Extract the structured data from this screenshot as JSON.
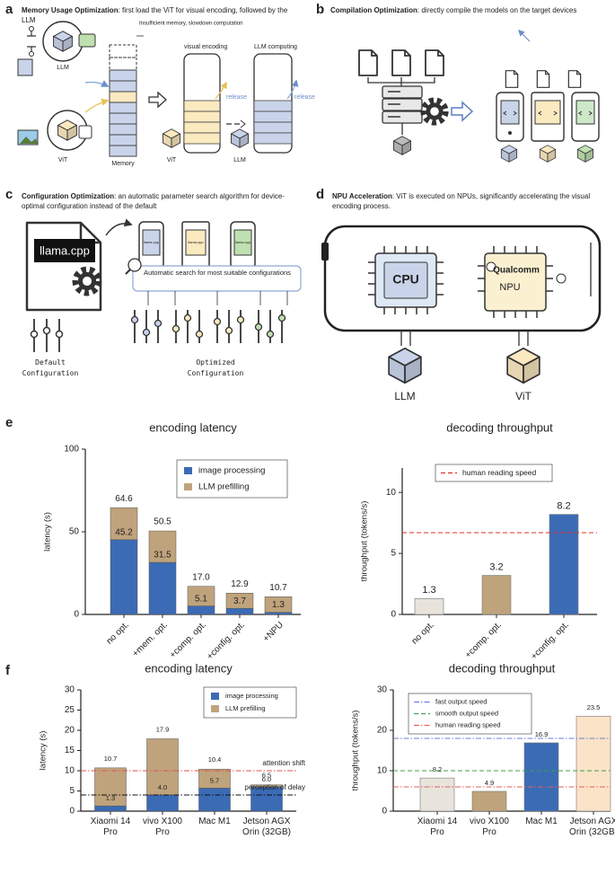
{
  "panels": {
    "a": {
      "label": "a",
      "title_bold": "Memory Usage Optimization",
      "title_rest": ": first load the ViT for visual encoding, followed by the LLM",
      "note": "Insufficient memory, slowdown computation",
      "stage1": "visual encoding",
      "stage2": "LLM computing",
      "release": [
        "release",
        "release"
      ],
      "llm": "LLM",
      "vit": "ViT",
      "memory": "Memory",
      "vit_small": "ViT",
      "llm_small": "LLM"
    },
    "b": {
      "label": "b",
      "title_bold": "Compilation Optimization",
      "title_rest": ": directly compile the models on the target devices"
    },
    "c": {
      "label": "c",
      "title_bold": "Configuration Optimization",
      "title_rest": ": an automatic parameter search algorithm for device-optimal configuration instead of the default",
      "tool": "llama.cpp",
      "phone_labels": [
        "llama.cpp",
        "llama.cpp",
        "llama.cpp"
      ],
      "search": "Automatic search for most suitable configurations",
      "default": "Default Configuration",
      "optimized": "Optimized Configuration"
    },
    "d": {
      "label": "d",
      "title_bold": "NPU Acceleration",
      "title_rest": ": ViT is executed on NPUs, significantly accelerating the visual encoding process.",
      "cpu": "CPU",
      "npu_brand": "Qualcomm",
      "npu": "NPU",
      "llm": "LLM",
      "vit": "ViT"
    }
  },
  "figure_labels": {
    "e": "e",
    "f": "f"
  },
  "chart_data": [
    {
      "type": "stacked_bar",
      "title": "encoding latency",
      "ylabel": "latency (s)",
      "categories": [
        "no opt.",
        "+mem. opt.",
        "+comp. opt.",
        "+config. opt.",
        "+NPU"
      ],
      "series": [
        {
          "name": "image processing",
          "color": "#3b6bb5",
          "values": [
            45.2,
            31.5,
            5.1,
            3.7,
            1.3
          ],
          "show_values": true
        },
        {
          "name": "LLM prefilling",
          "color": "#bfa37c",
          "values": [
            19.4,
            19.0,
            11.9,
            9.2,
            9.4
          ],
          "show_values": false
        }
      ],
      "total_labels": [
        "64.6",
        "50.5",
        "17.0",
        "12.9",
        "10.7"
      ],
      "ylim": [
        0,
        100
      ],
      "yticks": [
        0,
        50,
        100
      ],
      "grid": false,
      "legend": "upper right"
    },
    {
      "type": "bar",
      "title": "decoding throughput",
      "ylabel": "throughput (tokens/s)",
      "categories": [
        "no opt.",
        "+comp. opt.",
        "+config. opt."
      ],
      "values": [
        1.3,
        3.2,
        8.2
      ],
      "colors": [
        "#e8e4dc",
        "#bfa37c",
        "#3b6bb5"
      ],
      "reference_lines": [
        {
          "name": "human reading speed",
          "value": 6.7,
          "color": "#e0302a",
          "dash": "dashed"
        }
      ],
      "reference_label_position": "legend",
      "ylim": [
        0,
        12
      ],
      "yticks": [
        0,
        5,
        10
      ],
      "grid": false,
      "legend": "upper center"
    },
    {
      "type": "stacked_bar",
      "title": "encoding latency",
      "ylabel": "latency (s)",
      "categories": [
        "Xiaomi 14 Pro",
        "vivo X100 Pro",
        "Mac M1",
        "Jetson AGX Orin (32GB)"
      ],
      "series": [
        {
          "name": "image processing",
          "color": "#3b6bb5",
          "values": [
            1.3,
            4.0,
            5.7,
            6.0
          ],
          "value_labels": [
            "1.3",
            "4.0",
            "5.7",
            "6.0"
          ],
          "show_values": true
        },
        {
          "name": "LLM prefilling",
          "color": "#bfa37c",
          "values": [
            9.4,
            13.9,
            4.7,
            0.5
          ],
          "show_values": false
        }
      ],
      "total_labels": [
        "10.7",
        "17.9",
        "10.4",
        "6.5"
      ],
      "reference_lines": [
        {
          "name": "attention shift",
          "value": 10,
          "color": "#e05050",
          "dash": "dashdot"
        },
        {
          "name": "perception of delay",
          "value": 4,
          "color": "#111111",
          "dash": "dashdot"
        }
      ],
      "reference_label_position": "right",
      "ylim": [
        0,
        30
      ],
      "yticks": [
        0,
        5,
        10,
        15,
        20,
        25,
        30
      ],
      "grid": false,
      "legend": "upper right"
    },
    {
      "type": "bar",
      "title": "decoding throughput",
      "ylabel": "throughput (tokens/s)",
      "categories": [
        "Xiaomi 14 Pro",
        "vivo X100 Pro",
        "Mac M1",
        "Jetson AGX Orin (32GB)"
      ],
      "values": [
        8.2,
        4.9,
        16.9,
        23.5
      ],
      "colors": [
        "#e8e4dc",
        "#bfa37c",
        "#3b6bb5",
        "#fbe3c8"
      ],
      "reference_lines": [
        {
          "name": "fast output speed",
          "value": 18,
          "color": "#6a7fd6",
          "dash": "dashdot"
        },
        {
          "name": "smooth output speed",
          "value": 10,
          "color": "#3aa04a",
          "dash": "dashed"
        },
        {
          "name": "human reading speed",
          "value": 6,
          "color": "#e06060",
          "dash": "dashdot"
        }
      ],
      "reference_label_position": "legend",
      "ylim": [
        0,
        30
      ],
      "yticks": [
        0,
        10,
        20,
        30
      ],
      "grid": false,
      "legend": "upper left"
    }
  ]
}
